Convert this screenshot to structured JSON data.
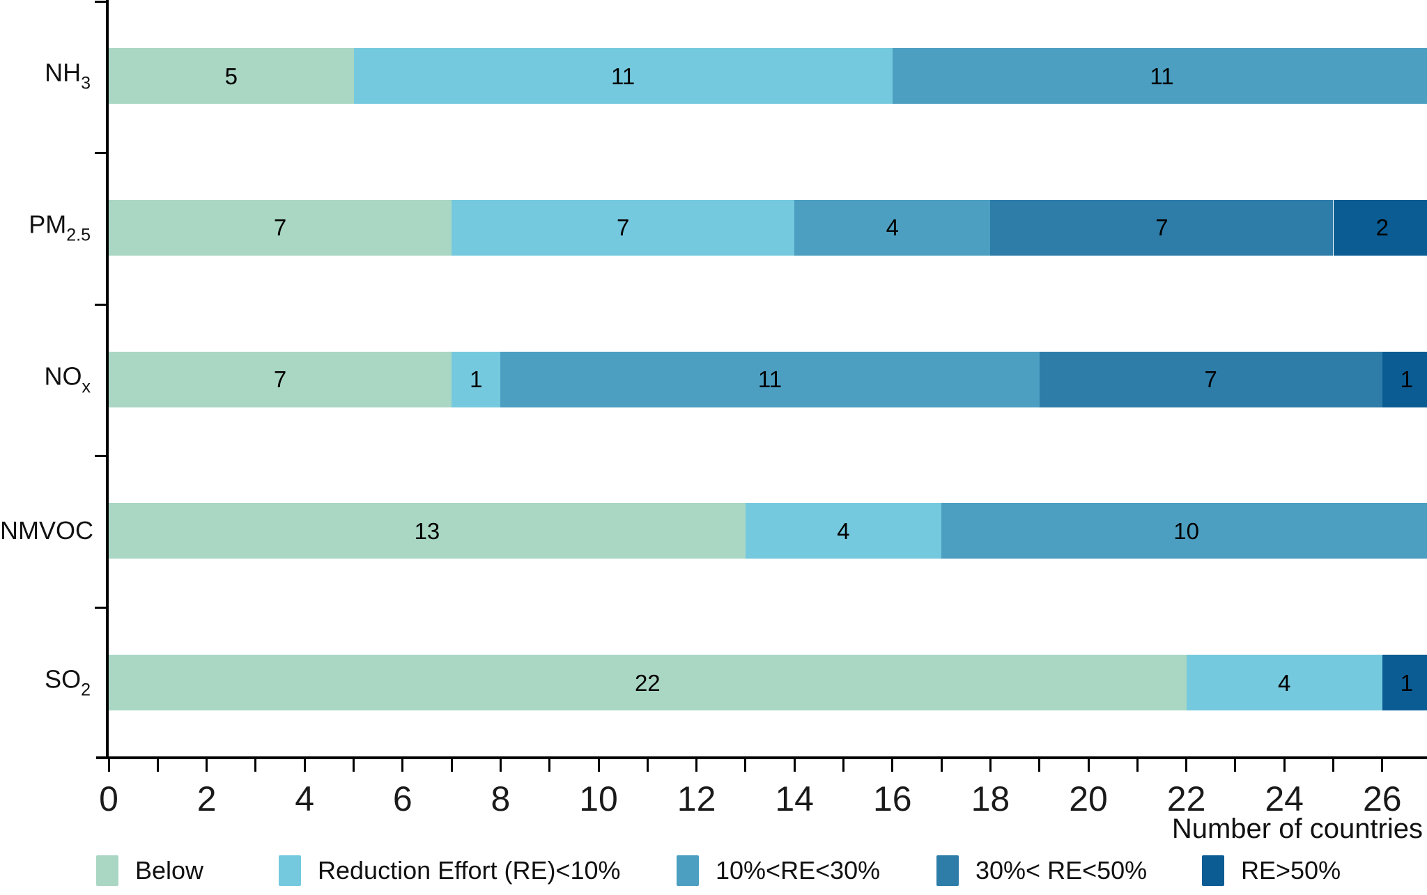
{
  "background": "#ffffff",
  "axis_color": "#000000",
  "text_color": "#1a1a1a",
  "chart_data": {
    "type": "bar",
    "orientation": "horizontal",
    "stacked": true,
    "title": "",
    "xlabel": "Number of countries",
    "ylabel": "",
    "grid": false,
    "legend_position": "bottom",
    "value_labels": true,
    "xlim": [
      0,
      27
    ],
    "xtick_minor_step": 1,
    "xtick_label_step": 2,
    "xtick_labels": [
      "0",
      "2",
      "4",
      "6",
      "8",
      "10",
      "12",
      "14",
      "16",
      "18",
      "20",
      "22",
      "24",
      "26"
    ],
    "categories": [
      {
        "key": "nh3",
        "main": "NH",
        "sub": "3"
      },
      {
        "key": "pm25",
        "main": "PM",
        "sub": "2.5"
      },
      {
        "key": "nox",
        "main": "NO",
        "sub": "x"
      },
      {
        "key": "nmvoc",
        "main": "NMVOC",
        "sub": ""
      },
      {
        "key": "so2",
        "main": "SO",
        "sub": "2"
      }
    ],
    "series": [
      {
        "name": "Below",
        "color": "#aad6c4",
        "values": [
          5,
          7,
          7,
          13,
          22
        ]
      },
      {
        "name": "Reduction Effort (RE)<10%",
        "color": "#75c9de",
        "values": [
          11,
          7,
          1,
          4,
          4
        ]
      },
      {
        "name": "10%<RE<30%",
        "color": "#4c9fc1",
        "values": [
          11,
          4,
          11,
          10,
          0
        ]
      },
      {
        "name": "30%< RE<50%",
        "color": "#2e7ca8",
        "values": [
          0,
          7,
          7,
          0,
          0
        ]
      },
      {
        "name": "RE>50%",
        "color": "#0b5c93",
        "values": [
          0,
          2,
          1,
          0,
          1
        ]
      }
    ]
  }
}
